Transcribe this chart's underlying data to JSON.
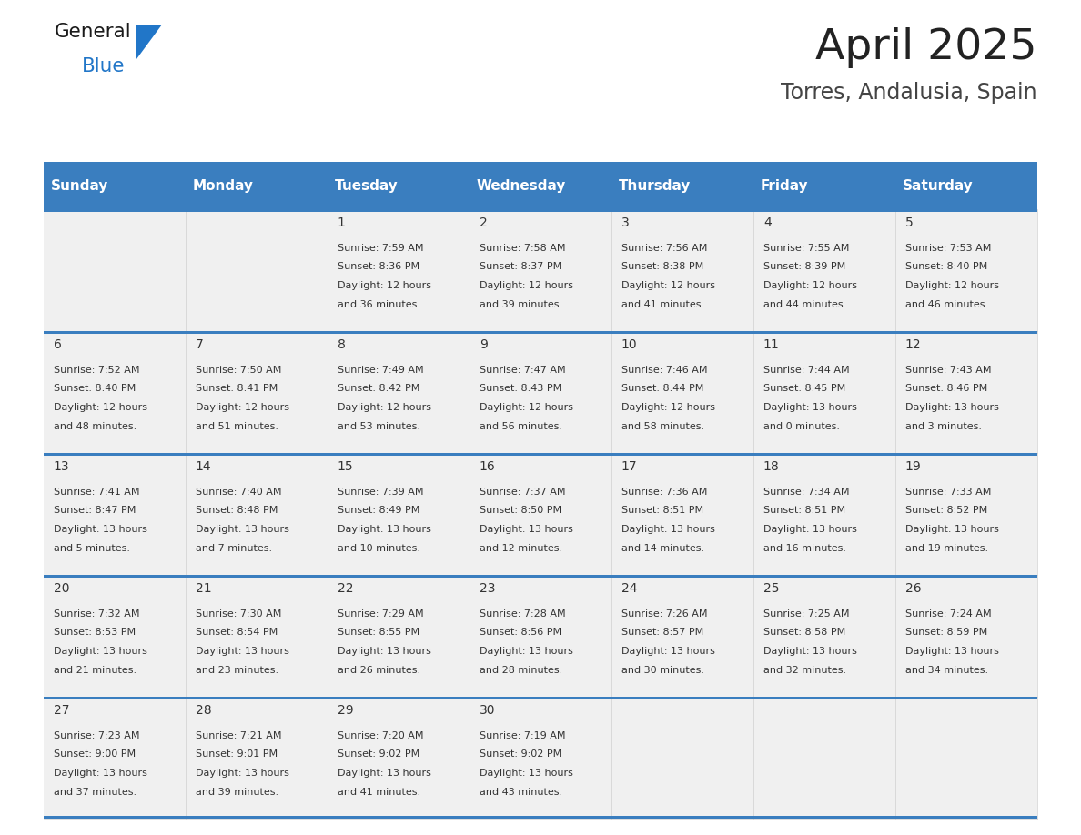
{
  "title": "April 2025",
  "subtitle": "Torres, Andalusia, Spain",
  "days_of_week": [
    "Sunday",
    "Monday",
    "Tuesday",
    "Wednesday",
    "Thursday",
    "Friday",
    "Saturday"
  ],
  "header_bg": "#3a7ebf",
  "header_text_color": "#ffffff",
  "cell_bg": "#f0f0f0",
  "cell_text_color": "#333333",
  "day_num_color": "#333333",
  "divider_color": "#3a7ebf",
  "title_color": "#222222",
  "subtitle_color": "#444444",
  "fig_bg": "#ffffff",
  "calendar_data": [
    [
      {
        "day": "",
        "sunrise": "",
        "sunset": "",
        "daylight": ""
      },
      {
        "day": "",
        "sunrise": "",
        "sunset": "",
        "daylight": ""
      },
      {
        "day": "1",
        "sunrise": "7:59 AM",
        "sunset": "8:36 PM",
        "daylight": "12 hours and 36 minutes."
      },
      {
        "day": "2",
        "sunrise": "7:58 AM",
        "sunset": "8:37 PM",
        "daylight": "12 hours and 39 minutes."
      },
      {
        "day": "3",
        "sunrise": "7:56 AM",
        "sunset": "8:38 PM",
        "daylight": "12 hours and 41 minutes."
      },
      {
        "day": "4",
        "sunrise": "7:55 AM",
        "sunset": "8:39 PM",
        "daylight": "12 hours and 44 minutes."
      },
      {
        "day": "5",
        "sunrise": "7:53 AM",
        "sunset": "8:40 PM",
        "daylight": "12 hours and 46 minutes."
      }
    ],
    [
      {
        "day": "6",
        "sunrise": "7:52 AM",
        "sunset": "8:40 PM",
        "daylight": "12 hours and 48 minutes."
      },
      {
        "day": "7",
        "sunrise": "7:50 AM",
        "sunset": "8:41 PM",
        "daylight": "12 hours and 51 minutes."
      },
      {
        "day": "8",
        "sunrise": "7:49 AM",
        "sunset": "8:42 PM",
        "daylight": "12 hours and 53 minutes."
      },
      {
        "day": "9",
        "sunrise": "7:47 AM",
        "sunset": "8:43 PM",
        "daylight": "12 hours and 56 minutes."
      },
      {
        "day": "10",
        "sunrise": "7:46 AM",
        "sunset": "8:44 PM",
        "daylight": "12 hours and 58 minutes."
      },
      {
        "day": "11",
        "sunrise": "7:44 AM",
        "sunset": "8:45 PM",
        "daylight": "13 hours and 0 minutes."
      },
      {
        "day": "12",
        "sunrise": "7:43 AM",
        "sunset": "8:46 PM",
        "daylight": "13 hours and 3 minutes."
      }
    ],
    [
      {
        "day": "13",
        "sunrise": "7:41 AM",
        "sunset": "8:47 PM",
        "daylight": "13 hours and 5 minutes."
      },
      {
        "day": "14",
        "sunrise": "7:40 AM",
        "sunset": "8:48 PM",
        "daylight": "13 hours and 7 minutes."
      },
      {
        "day": "15",
        "sunrise": "7:39 AM",
        "sunset": "8:49 PM",
        "daylight": "13 hours and 10 minutes."
      },
      {
        "day": "16",
        "sunrise": "7:37 AM",
        "sunset": "8:50 PM",
        "daylight": "13 hours and 12 minutes."
      },
      {
        "day": "17",
        "sunrise": "7:36 AM",
        "sunset": "8:51 PM",
        "daylight": "13 hours and 14 minutes."
      },
      {
        "day": "18",
        "sunrise": "7:34 AM",
        "sunset": "8:51 PM",
        "daylight": "13 hours and 16 minutes."
      },
      {
        "day": "19",
        "sunrise": "7:33 AM",
        "sunset": "8:52 PM",
        "daylight": "13 hours and 19 minutes."
      }
    ],
    [
      {
        "day": "20",
        "sunrise": "7:32 AM",
        "sunset": "8:53 PM",
        "daylight": "13 hours and 21 minutes."
      },
      {
        "day": "21",
        "sunrise": "7:30 AM",
        "sunset": "8:54 PM",
        "daylight": "13 hours and 23 minutes."
      },
      {
        "day": "22",
        "sunrise": "7:29 AM",
        "sunset": "8:55 PM",
        "daylight": "13 hours and 26 minutes."
      },
      {
        "day": "23",
        "sunrise": "7:28 AM",
        "sunset": "8:56 PM",
        "daylight": "13 hours and 28 minutes."
      },
      {
        "day": "24",
        "sunrise": "7:26 AM",
        "sunset": "8:57 PM",
        "daylight": "13 hours and 30 minutes."
      },
      {
        "day": "25",
        "sunrise": "7:25 AM",
        "sunset": "8:58 PM",
        "daylight": "13 hours and 32 minutes."
      },
      {
        "day": "26",
        "sunrise": "7:24 AM",
        "sunset": "8:59 PM",
        "daylight": "13 hours and 34 minutes."
      }
    ],
    [
      {
        "day": "27",
        "sunrise": "7:23 AM",
        "sunset": "9:00 PM",
        "daylight": "13 hours and 37 minutes."
      },
      {
        "day": "28",
        "sunrise": "7:21 AM",
        "sunset": "9:01 PM",
        "daylight": "13 hours and 39 minutes."
      },
      {
        "day": "29",
        "sunrise": "7:20 AM",
        "sunset": "9:02 PM",
        "daylight": "13 hours and 41 minutes."
      },
      {
        "day": "30",
        "sunrise": "7:19 AM",
        "sunset": "9:02 PM",
        "daylight": "13 hours and 43 minutes."
      },
      {
        "day": "",
        "sunrise": "",
        "sunset": "",
        "daylight": ""
      },
      {
        "day": "",
        "sunrise": "",
        "sunset": "",
        "daylight": ""
      },
      {
        "day": "",
        "sunrise": "",
        "sunset": "",
        "daylight": ""
      }
    ]
  ],
  "logo_color_general": "#1a1a1a",
  "logo_color_blue": "#2176c8",
  "logo_triangle_color": "#2176c8",
  "header_fontsize": 11,
  "day_num_fontsize": 10,
  "cell_fontsize": 8,
  "title_fontsize": 34,
  "subtitle_fontsize": 17
}
